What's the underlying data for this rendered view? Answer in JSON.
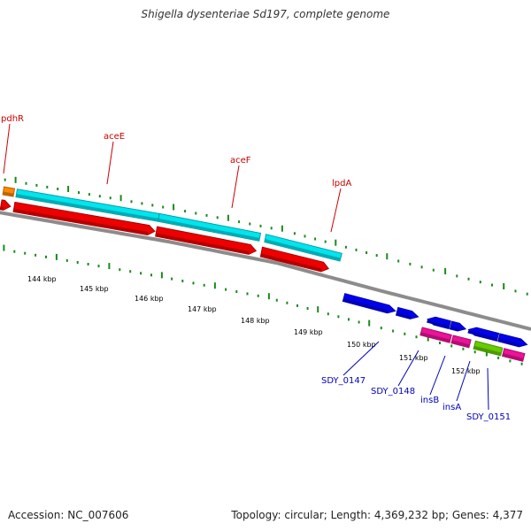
{
  "title": "Shigella dysenteriae Sd197, complete genome",
  "footer": {
    "accession": "Accession: NC_007606",
    "topology": "Topology: circular; Length: 4,369,232 bp; Genes: 4,377"
  },
  "colors": {
    "backbone": "#8c8c8c",
    "tick": "#1a8a1a",
    "upper_gene_label": "#cc0000",
    "lower_gene_label": "#0000bb",
    "kbp_label": "#000000"
  },
  "kbp_labels": [
    "144 kbp",
    "145 kbp",
    "146 kbp",
    "147 kbp",
    "148 kbp",
    "149 kbp",
    "150 kbp",
    "151 kbp",
    "152 kbp"
  ],
  "upper_labels": [
    "pdhR",
    "aceE",
    "aceF",
    "lpdA"
  ],
  "lower_labels": [
    "SDY_0147",
    "SDY_0148",
    "insB",
    "insA",
    "SDY_0151"
  ],
  "features": [
    {
      "id": "pdhR",
      "track": "cyan",
      "color": "#ff8800",
      "start": 142.8,
      "end": 143.0
    },
    {
      "id": "aceE",
      "track": "cyan",
      "color": "#00e5ee",
      "start": 143.05,
      "end": 145.75
    },
    {
      "id": "aceF",
      "track": "cyan",
      "color": "#00e5ee",
      "start": 145.75,
      "end": 147.62
    },
    {
      "id": "lpdA",
      "track": "cyan",
      "color": "#00e5ee",
      "start": 147.72,
      "end": 149.15
    },
    {
      "id": "pdhR_cds",
      "track": "red",
      "color": "#ee0000",
      "start": 142.8,
      "end": 142.98,
      "dir": 1
    },
    {
      "id": "aceE_cds",
      "track": "red",
      "color": "#ee0000",
      "start": 143.05,
      "end": 145.72,
      "dir": 1
    },
    {
      "id": "aceF_cds",
      "track": "red",
      "color": "#ee0000",
      "start": 145.75,
      "end": 147.6,
      "dir": 1
    },
    {
      "id": "lpdA_cds",
      "track": "red",
      "color": "#ee0000",
      "start": 147.7,
      "end": 148.98,
      "dir": 1
    },
    {
      "id": "SDY_0147",
      "track": "blue",
      "color": "#0000ee",
      "start": 149.4,
      "end": 150.35,
      "dir": 1
    },
    {
      "id": "SDY_0147b",
      "track": "blue",
      "color": "#0000ee",
      "start": 150.38,
      "end": 150.74,
      "dir": 1
    },
    {
      "id": "SDY_0148",
      "track": "blue",
      "color": "#0000ee",
      "start": 150.9,
      "end": 151.28,
      "dir": -1
    },
    {
      "id": "SDY_0148b",
      "track": "blue",
      "color": "#0000ee",
      "start": 151.3,
      "end": 151.55,
      "dir": 1
    },
    {
      "id": "SDY_0149",
      "track": "blue",
      "color": "#0000ee",
      "start": 151.6,
      "end": 152.1,
      "dir": -1
    },
    {
      "id": "SDY_0150",
      "track": "blue",
      "color": "#0000ee",
      "start": 152.12,
      "end": 152.6,
      "dir": 1
    },
    {
      "id": "insB",
      "track": "pink",
      "color": "#ee1199",
      "start": 150.85,
      "end": 151.35
    },
    {
      "id": "insB2",
      "track": "pink",
      "color": "#ee1199",
      "start": 151.38,
      "end": 151.68
    },
    {
      "id": "insA",
      "track": "pink",
      "color": "#66cc00",
      "start": 151.76,
      "end": 152.22
    },
    {
      "id": "SDY_0151",
      "track": "pink",
      "color": "#ee1199",
      "start": 152.25,
      "end": 152.6
    }
  ]
}
